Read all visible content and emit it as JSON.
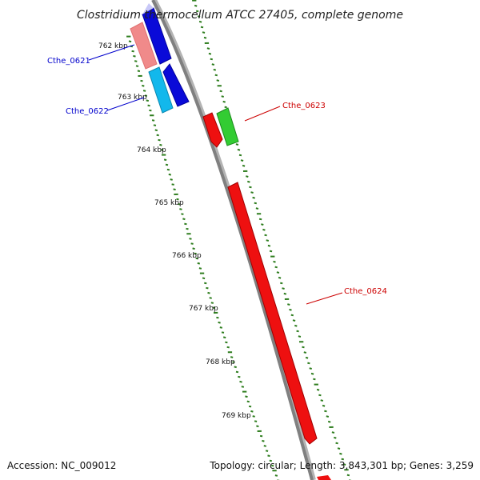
{
  "header": {
    "title": "Clostridium thermocellum ATCC 27405, complete genome"
  },
  "footer": {
    "accession": "Accession: NC_009012",
    "summary": "Topology: circular; Length: 3,843,301 bp; Genes: 3,259"
  },
  "colors": {
    "backbone": "#808080",
    "tick": "#2e7d1e",
    "label_blue": "#0000cc",
    "label_red": "#cc0000"
  },
  "scale": {
    "unit": "kbp",
    "tick_labels": [
      "762 kbp",
      "763 kbp",
      "764 kbp",
      "765 kbp",
      "766 kbp",
      "767 kbp",
      "768 kbp",
      "769 kbp"
    ]
  },
  "genes": [
    {
      "name": "Cthe_0621",
      "label_color": "blue"
    },
    {
      "name": "Cthe_0622",
      "label_color": "blue"
    },
    {
      "name": "Cthe_0623",
      "label_color": "red"
    },
    {
      "name": "Cthe_0624",
      "label_color": "red"
    }
  ]
}
